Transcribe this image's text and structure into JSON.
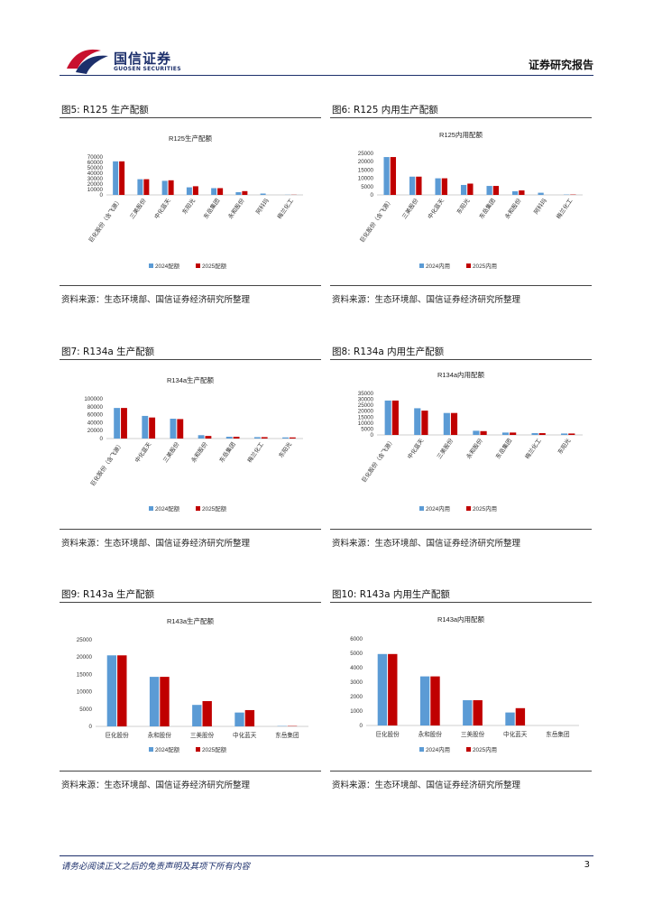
{
  "header": {
    "logo_cn": "国信证券",
    "logo_en": "GUOSEN SECURITIES",
    "report_type": "证券研究报告",
    "brand_color": "#1c2f6b",
    "logo_red": "#c8102e",
    "logo_blue": "#1c2f6b"
  },
  "colors": {
    "series_2024": "#5b9bd5",
    "series_2025": "#c00000"
  },
  "figures": [
    {
      "title": "图5: R125 生产配额",
      "source": "资料来源：生态环境部、国信证券经济研究所整理"
    },
    {
      "title": "图6: R125 内用生产配额",
      "source": "资料来源：生态环境部、国信证券经济研究所整理"
    },
    {
      "title": "图7: R134a 生产配额",
      "source": "资料来源：生态环境部、国信证券经济研究所整理"
    },
    {
      "title": "图8: R134a 内用生产配额",
      "source": "资料来源：生态环境部、国信证券经济研究所整理"
    },
    {
      "title": "图9: R143a 生产配额",
      "source": "资料来源：生态环境部、国信证券经济研究所整理"
    },
    {
      "title": "图10: R143a 内用生产配额",
      "source": "资料来源：生态环境部、国信证券经济研究所整理"
    }
  ],
  "chart_data": [
    {
      "type": "bar",
      "title": "R125生产配额",
      "categories": [
        "巨化股份（含飞源）",
        "三美股份",
        "中化蓝天",
        "东阳光",
        "东岳集团",
        "永和股份",
        "阿科玛",
        "梅兰化工"
      ],
      "series": [
        {
          "name": "2024配额",
          "values": [
            62000,
            29000,
            26000,
            14000,
            12500,
            5000,
            2500,
            300
          ]
        },
        {
          "name": "2025配额",
          "values": [
            62000,
            29000,
            27000,
            16000,
            12500,
            7000,
            0,
            300
          ]
        }
      ],
      "yticks": [
        0,
        10000,
        20000,
        30000,
        40000,
        50000,
        60000,
        70000
      ],
      "ylim": [
        0,
        70000
      ],
      "legend": "bottom"
    },
    {
      "type": "bar",
      "title": "R125内用配额",
      "categories": [
        "巨化股份（含飞源）",
        "三美股份",
        "中化蓝天",
        "东阳光",
        "东岳集团",
        "永和股份",
        "阿科玛",
        "梅兰化工"
      ],
      "series": [
        {
          "name": "2024内用",
          "values": [
            22800,
            11000,
            10000,
            6000,
            5400,
            2200,
            1300,
            200
          ]
        },
        {
          "name": "2025内用",
          "values": [
            22800,
            11000,
            10000,
            6800,
            5400,
            2700,
            0,
            200
          ]
        }
      ],
      "yticks": [
        0,
        5000,
        10000,
        15000,
        20000,
        25000
      ],
      "ylim": [
        0,
        25000
      ],
      "legend": "bottom"
    },
    {
      "type": "bar",
      "title": "R134a生产配额",
      "categories": [
        "巨化股份（含飞源）",
        "中化蓝天",
        "三美股份",
        "永和股份",
        "东岳集团",
        "梅兰化工",
        "东阳光"
      ],
      "series": [
        {
          "name": "2024配额",
          "values": [
            77000,
            57000,
            50000,
            8500,
            4500,
            3500,
            2800
          ]
        },
        {
          "name": "2025配额",
          "values": [
            77000,
            53000,
            49000,
            6500,
            4500,
            3500,
            2800
          ]
        }
      ],
      "yticks": [
        0,
        20000,
        40000,
        60000,
        80000,
        100000
      ],
      "ylim": [
        0,
        100000
      ],
      "legend": "bottom"
    },
    {
      "type": "bar",
      "title": "R134a内用配额",
      "categories": [
        "巨化股份（含飞源）",
        "中化蓝天",
        "三美股份",
        "永和股份",
        "东岳集团",
        "梅兰化工",
        "东阳光"
      ],
      "series": [
        {
          "name": "2024内用",
          "values": [
            29000,
            22500,
            18500,
            3500,
            2000,
            1500,
            1200
          ]
        },
        {
          "name": "2025内用",
          "values": [
            29000,
            20500,
            18500,
            3200,
            2000,
            1500,
            1200
          ]
        }
      ],
      "yticks": [
        0,
        5000,
        10000,
        15000,
        20000,
        25000,
        30000,
        35000
      ],
      "ylim": [
        0,
        35000
      ],
      "legend": "bottom"
    },
    {
      "type": "bar",
      "title": "R143a生产配额",
      "categories": [
        "巨化股份",
        "永和股份",
        "三美股份",
        "中化蓝天",
        "东岳集团"
      ],
      "series": [
        {
          "name": "2024配额",
          "values": [
            20500,
            14300,
            6200,
            4000,
            100
          ]
        },
        {
          "name": "2025配额",
          "values": [
            20500,
            14300,
            7300,
            4700,
            100
          ]
        }
      ],
      "yticks": [
        0,
        5000,
        10000,
        15000,
        20000,
        25000
      ],
      "ylim": [
        0,
        25000
      ],
      "legend": "bottom"
    },
    {
      "type": "bar",
      "title": "R143a内用配额",
      "categories": [
        "巨化股份",
        "永和股份",
        "三美股份",
        "中化蓝天",
        "东岳集团"
      ],
      "series": [
        {
          "name": "2024内用",
          "values": [
            4950,
            3400,
            1750,
            900,
            0
          ]
        },
        {
          "name": "2025内用",
          "values": [
            4950,
            3400,
            1750,
            1200,
            0
          ]
        }
      ],
      "yticks": [
        0,
        1000,
        2000,
        3000,
        4000,
        5000,
        6000
      ],
      "ylim": [
        0,
        6000
      ],
      "legend": "bottom"
    }
  ],
  "footer": {
    "disclaimer": "请务必阅读正文之后的免责声明及其项下所有内容",
    "page_number": "3"
  }
}
